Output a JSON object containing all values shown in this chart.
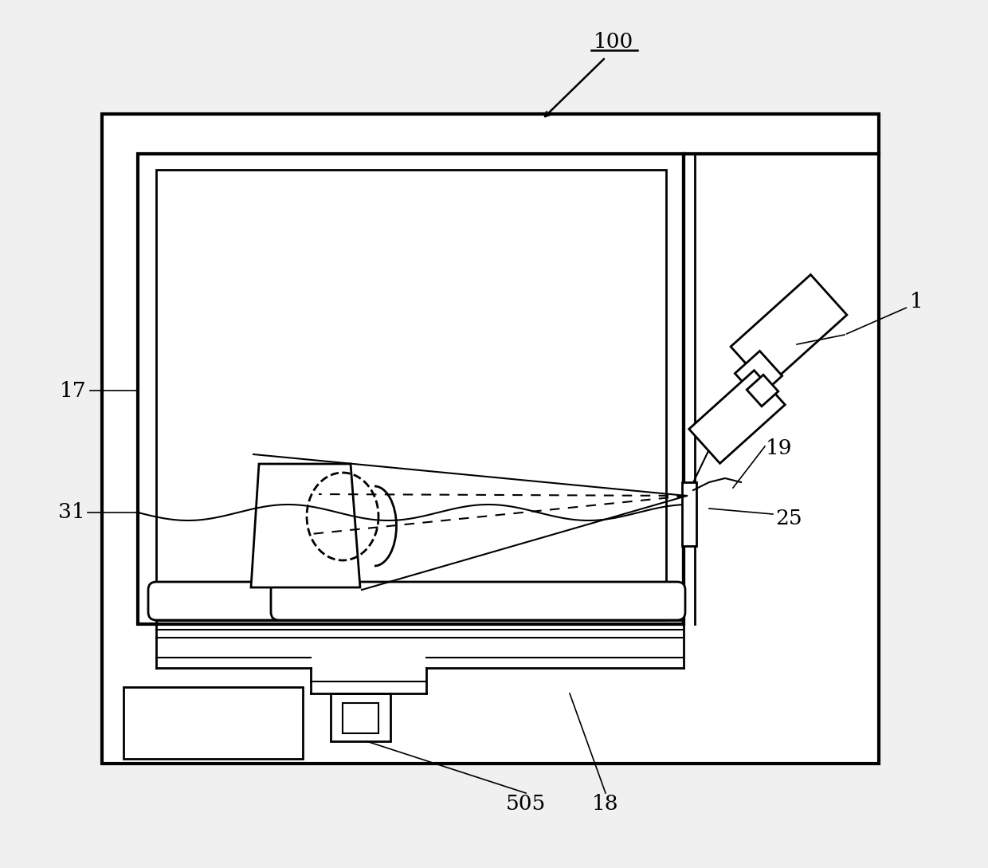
{
  "bg_color": "#ffffff",
  "fig_bg": "#f0f0f0",
  "lw_thick": 3.0,
  "lw_med": 2.0,
  "lw_thin": 1.5,
  "lw_label": 1.2
}
